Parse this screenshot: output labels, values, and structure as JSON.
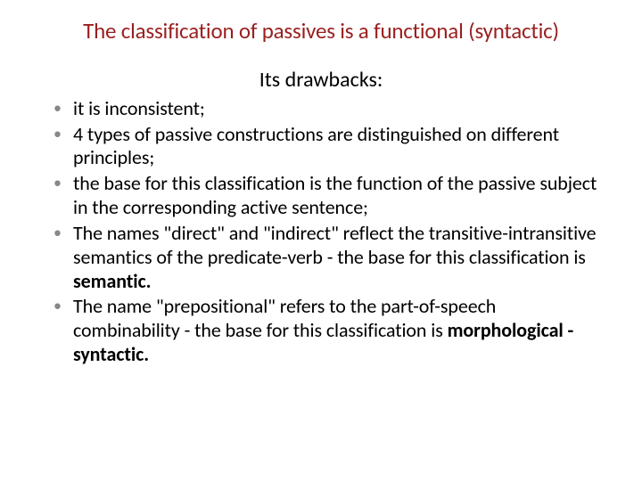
{
  "slide": {
    "title": "The classification of passives is a functional (syntactic)",
    "subtitle": "Its drawbacks:",
    "bullets": [
      {
        "html": "it is inconsistent;"
      },
      {
        "html": "4 types of passive constructions are distinguished on different principles;"
      },
      {
        "html": "the base for this classification is the function of the passive subject in the corresponding active sentence;"
      },
      {
        "html": "The names \"direct\" and \"indirect\" reflect the transitive-intransitive semantics of the predicate-verb - the base for this classification is <span class=\"b\">semantic.</span>"
      },
      {
        "html": "The name \"prepositional\" refers to the part-of-speech combinability - the base for this classification is <span class=\"b\">morphological -syntactic.</span>"
      }
    ]
  },
  "style": {
    "title_color": "#9a1f1f",
    "body_color": "#000000",
    "bullet_marker_color": "#888888",
    "background_color": "#ffffff",
    "title_fontsize": 25,
    "subtitle_fontsize": 24,
    "body_fontsize": 22,
    "font_family": "Calibri"
  }
}
